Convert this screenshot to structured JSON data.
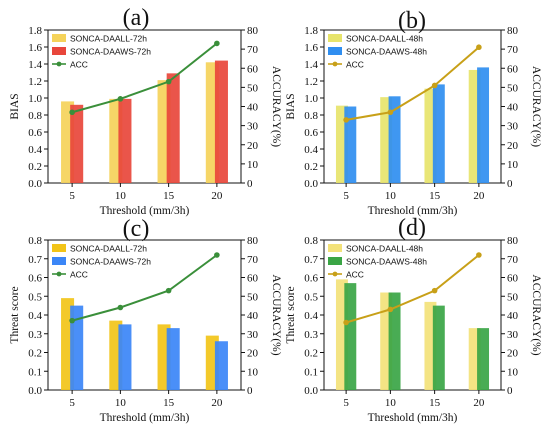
{
  "chart_data": [
    {
      "panel": "(a)",
      "type": "bar",
      "categories": [
        "5",
        "10",
        "15",
        "20"
      ],
      "xlabel": "Threshold (mm/3h)",
      "ylabel": "BIAS",
      "y2label": "ACCURACY(%)",
      "ylim": [
        0,
        1.8
      ],
      "y2lim": [
        0,
        80
      ],
      "yticks": [
        "0.0",
        "0.2",
        "0.4",
        "0.6",
        "0.8",
        "1.0",
        "1.2",
        "1.4",
        "1.6",
        "1.8"
      ],
      "y2ticks": [
        "0",
        "10",
        "20",
        "30",
        "40",
        "50",
        "60",
        "70",
        "80"
      ],
      "legend_position": "top-left",
      "series": [
        {
          "name": "SONCA-DAALL-72h",
          "color": "#f5d35a",
          "values": [
            0.96,
            0.99,
            1.21,
            1.42
          ]
        },
        {
          "name": "SONCA-DAAWS-72h",
          "color": "#e8463b",
          "values": [
            0.92,
            0.99,
            1.29,
            1.44
          ]
        }
      ],
      "line": {
        "name": "ACC",
        "color": "#3a8f3a",
        "values": [
          37,
          44,
          53,
          73
        ]
      }
    },
    {
      "panel": "(b)",
      "type": "bar",
      "categories": [
        "5",
        "10",
        "15",
        "20"
      ],
      "xlabel": "Threshold (mm/3h)",
      "ylabel": "BIAS",
      "y2label": "ACCURACY(%)",
      "ylim": [
        0,
        1.8
      ],
      "y2lim": [
        0,
        80
      ],
      "yticks": [
        "0.0",
        "0.2",
        "0.4",
        "0.6",
        "0.8",
        "1.0",
        "1.2",
        "1.4",
        "1.6",
        "1.8"
      ],
      "y2ticks": [
        "0",
        "10",
        "20",
        "30",
        "40",
        "50",
        "60",
        "70",
        "80"
      ],
      "legend_position": "top-left",
      "series": [
        {
          "name": "SONCA-DAALL-48h",
          "color": "#e7e46b",
          "values": [
            0.91,
            1.01,
            1.11,
            1.33
          ]
        },
        {
          "name": "SONCA-DAAWS-48h",
          "color": "#2f8ef0",
          "values": [
            0.9,
            1.02,
            1.16,
            1.36
          ]
        }
      ],
      "line": {
        "name": "ACC",
        "color": "#c8a018",
        "values": [
          33,
          37,
          51,
          71
        ]
      }
    },
    {
      "panel": "(c)",
      "type": "bar",
      "categories": [
        "5",
        "10",
        "15",
        "20"
      ],
      "xlabel": "Threshold (mm/3h)",
      "ylabel": "Threat score",
      "y2label": "ACCURACY(%)",
      "ylim": [
        0,
        0.8
      ],
      "y2lim": [
        0,
        80
      ],
      "yticks": [
        "0.0",
        "0.1",
        "0.2",
        "0.3",
        "0.4",
        "0.5",
        "0.6",
        "0.7",
        "0.8"
      ],
      "y2ticks": [
        "0",
        "10",
        "20",
        "30",
        "40",
        "50",
        "60",
        "70",
        "80"
      ],
      "legend_position": "top-left",
      "series": [
        {
          "name": "SONCA-DAALL-72h",
          "color": "#f2c418",
          "values": [
            0.49,
            0.37,
            0.35,
            0.29
          ]
        },
        {
          "name": "SONCA-DAAWS-72h",
          "color": "#3b86f7",
          "values": [
            0.45,
            0.35,
            0.33,
            0.26
          ]
        }
      ],
      "line": {
        "name": "ACC",
        "color": "#3a8f3a",
        "values": [
          37,
          44,
          53,
          72
        ]
      }
    },
    {
      "panel": "(d)",
      "type": "bar",
      "categories": [
        "5",
        "10",
        "15",
        "20"
      ],
      "xlabel": "Threshold (mm/3h)",
      "ylabel": "Threat score",
      "y2label": "ACCURACY(%)",
      "ylim": [
        0,
        0.8
      ],
      "y2lim": [
        0,
        80
      ],
      "yticks": [
        "0.0",
        "0.1",
        "0.2",
        "0.3",
        "0.4",
        "0.5",
        "0.6",
        "0.7",
        "0.8"
      ],
      "y2ticks": [
        "0",
        "10",
        "20",
        "30",
        "40",
        "50",
        "60",
        "70",
        "80"
      ],
      "legend_position": "top-left",
      "series": [
        {
          "name": "SONCA-DAALL-48h",
          "color": "#f3e27a",
          "values": [
            0.59,
            0.52,
            0.47,
            0.33
          ]
        },
        {
          "name": "SONCA-DAAWS-48h",
          "color": "#3aa545",
          "values": [
            0.57,
            0.52,
            0.45,
            0.33
          ]
        }
      ],
      "line": {
        "name": "ACC",
        "color": "#c8a018",
        "values": [
          36,
          43,
          53,
          72
        ]
      }
    }
  ]
}
